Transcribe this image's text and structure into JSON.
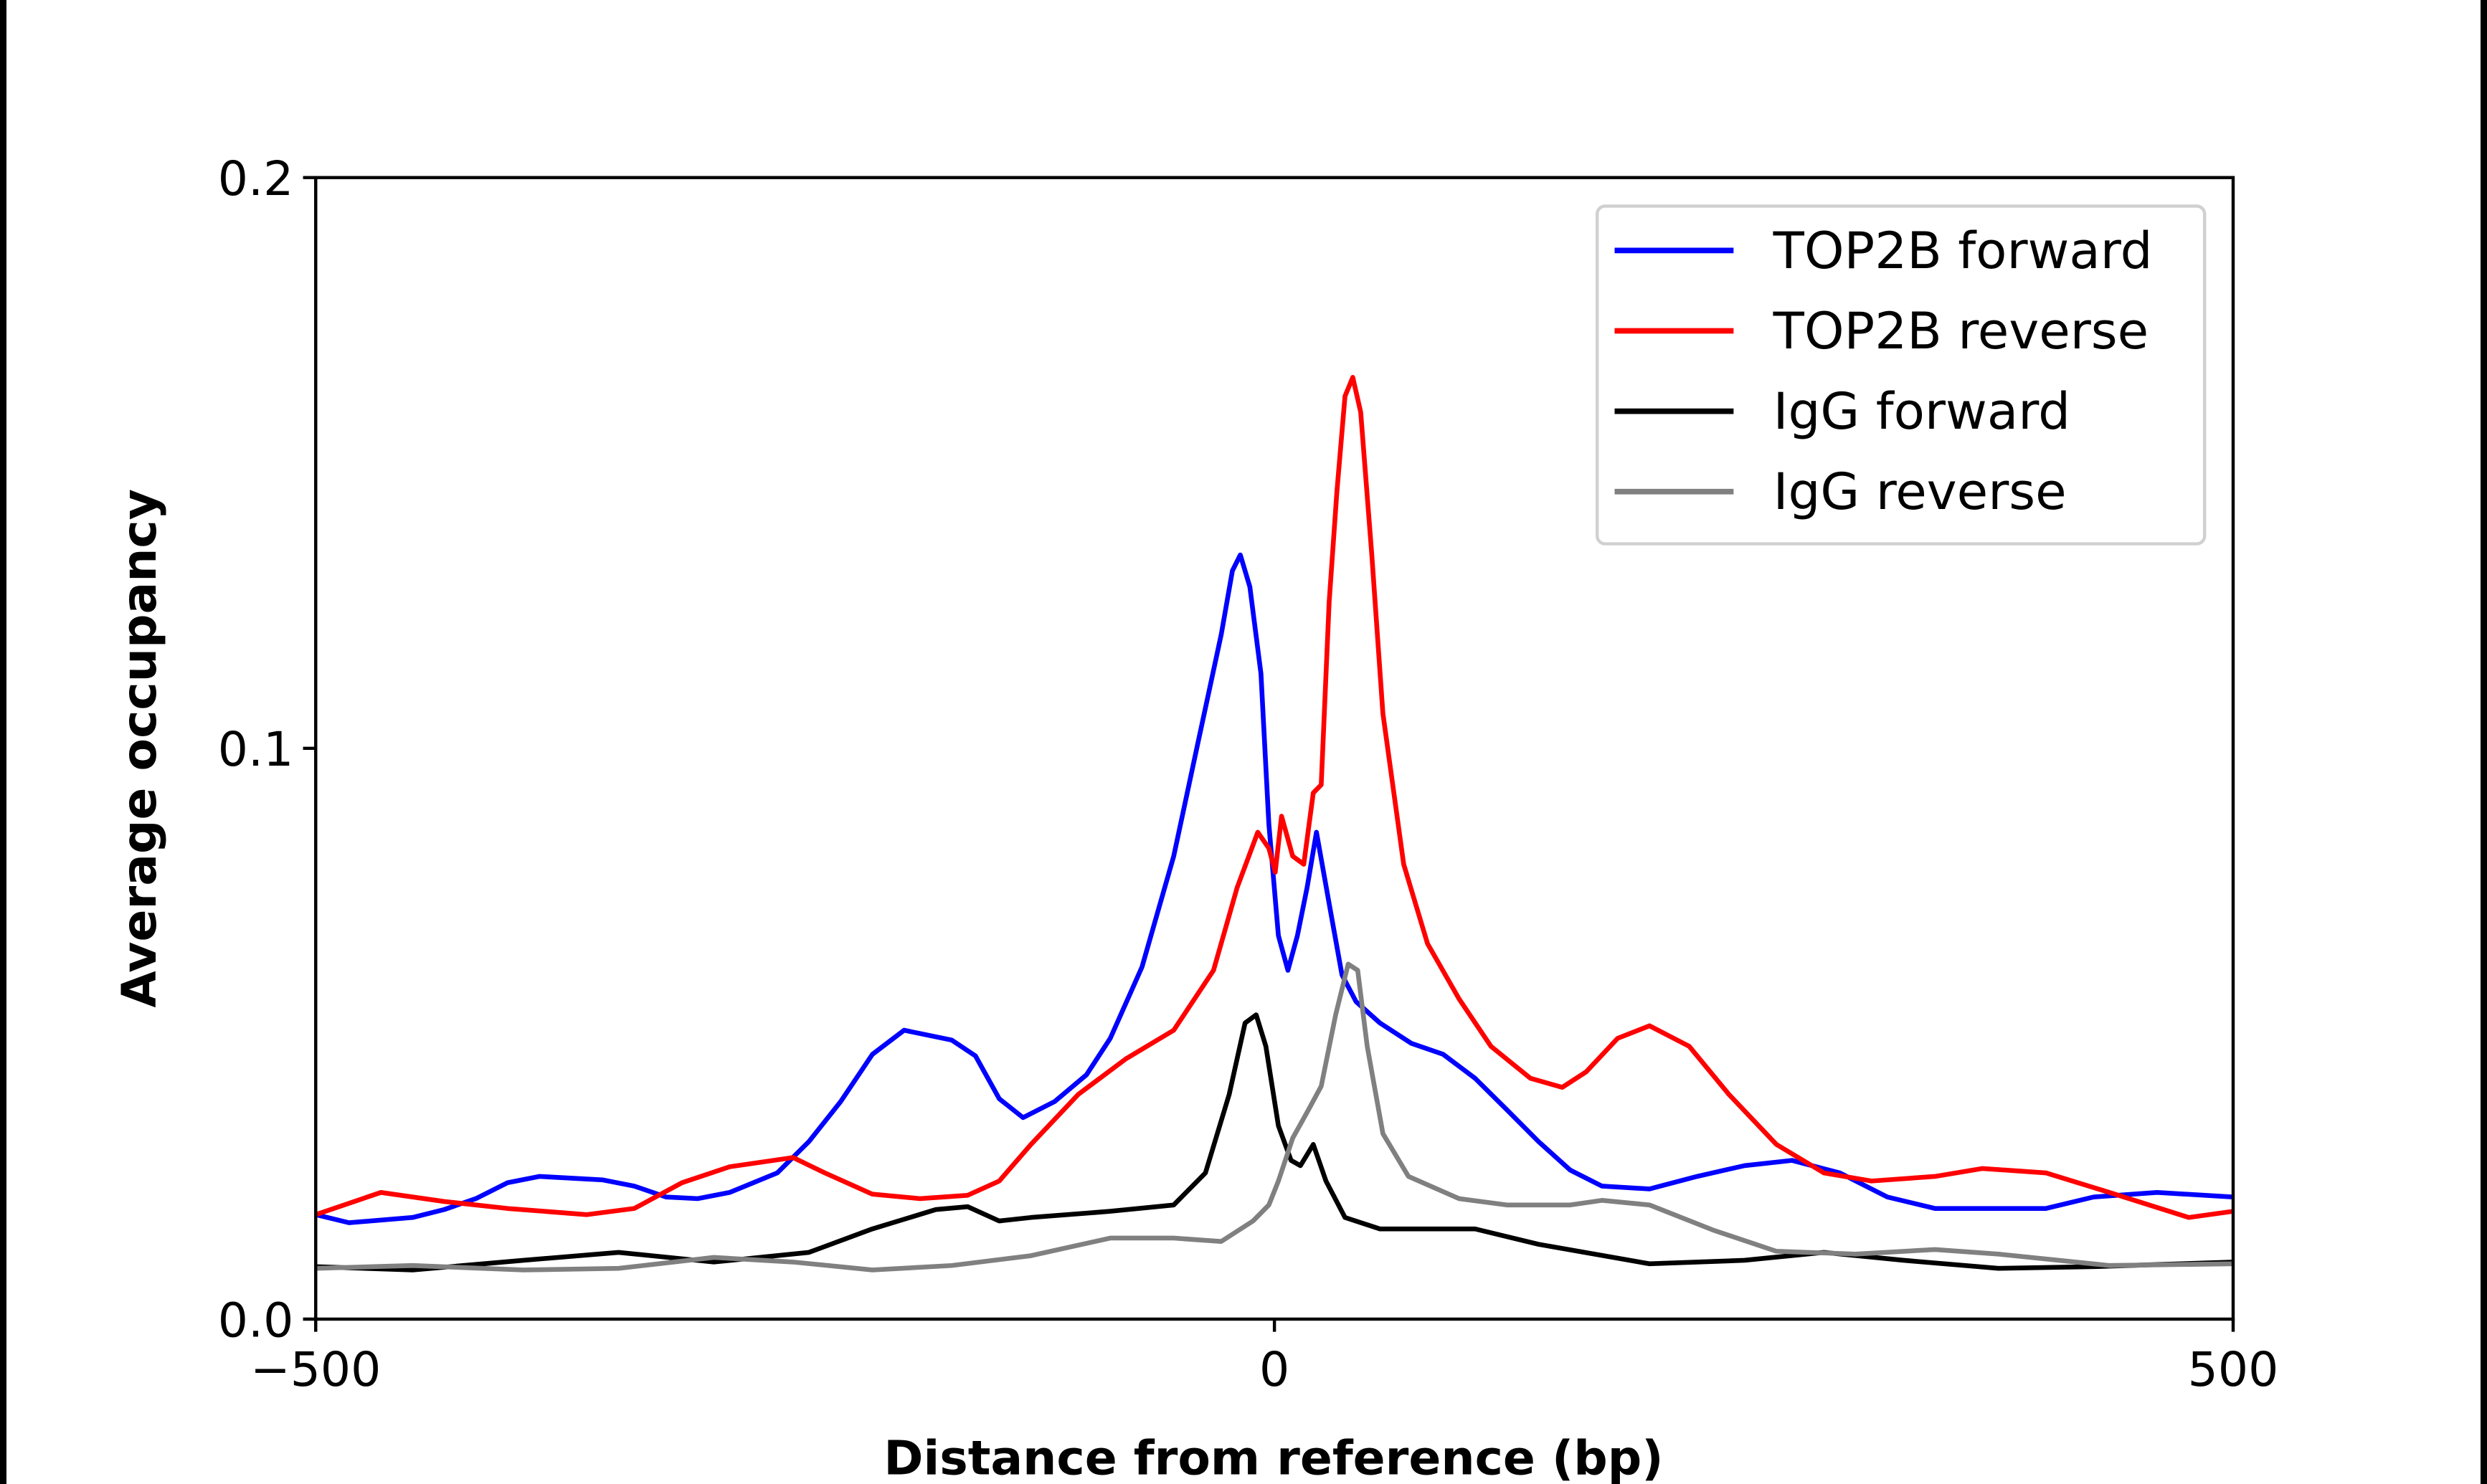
{
  "chart_data": {
    "type": "line",
    "title": "",
    "xlabel": "Distance from reference (bp)",
    "ylabel": "Average occupancy",
    "xlim": [
      -500,
      500
    ],
    "ylim": [
      0,
      0.2
    ],
    "xticks": [
      {
        "value": -500,
        "label": "−500"
      },
      {
        "value": 0,
        "label": "0"
      },
      {
        "value": 500,
        "label": "500"
      }
    ],
    "yticks": [
      {
        "value": 0,
        "label": "0.0"
      },
      {
        "value": 0.1,
        "label": "0.1"
      },
      {
        "value": 0.2,
        "label": "0.2"
      }
    ],
    "grid": false,
    "legend_position": "top-right",
    "series": [
      {
        "name": "TOP2B forward",
        "color": "#0000ff",
        "x": [
          -500,
          -482.6,
          -449.5,
          -433,
          -416.5,
          -400,
          -383.4,
          -350.3,
          -333.8,
          -317.2,
          -300.7,
          -284.1,
          -259.3,
          -242.8,
          -226.2,
          -209.7,
          -193.1,
          -168.3,
          -155.9,
          -143.5,
          -131.1,
          -114.6,
          -98,
          -85.6,
          -69.1,
          -52.5,
          -40.1,
          -27.7,
          -21.9,
          -17.8,
          -12.8,
          -7,
          -2.9,
          2.1,
          7,
          12,
          17,
          21.9,
          28.5,
          35.2,
          42.6,
          55,
          71.5,
          88,
          104.6,
          121.2,
          137.7,
          154.3,
          170.8,
          195.6,
          220.4,
          245.2,
          270,
          294.9,
          319.7,
          344.5,
          377.6,
          402.4,
          427.2,
          460.3,
          500
        ],
        "y": [
          0.0183,
          0.0169,
          0.0178,
          0.0192,
          0.0211,
          0.0239,
          0.025,
          0.0244,
          0.0233,
          0.0214,
          0.0211,
          0.0222,
          0.0256,
          0.0311,
          0.0381,
          0.0464,
          0.0506,
          0.0489,
          0.0461,
          0.0386,
          0.0353,
          0.0381,
          0.0428,
          0.0492,
          0.0617,
          0.0811,
          0.1006,
          0.12,
          0.1311,
          0.1339,
          0.1283,
          0.1131,
          0.0867,
          0.0672,
          0.0611,
          0.0672,
          0.0756,
          0.0853,
          0.0728,
          0.0603,
          0.0556,
          0.0519,
          0.0483,
          0.0464,
          0.0422,
          0.0367,
          0.0311,
          0.0261,
          0.0233,
          0.0228,
          0.025,
          0.0269,
          0.0278,
          0.0256,
          0.0214,
          0.0194,
          0.0194,
          0.0194,
          0.0214,
          0.0222,
          0.0214
        ]
      },
      {
        "name": "TOP2B reverse",
        "color": "#ff0000",
        "x": [
          -500,
          -466,
          -433,
          -400,
          -358.6,
          -333.8,
          -309,
          -284.1,
          -251,
          -234.4,
          -209.7,
          -184.9,
          -160,
          -143.5,
          -127,
          -102.2,
          -77.4,
          -52.5,
          -31.8,
          -19.4,
          -8.7,
          -2.9,
          0.4,
          3.7,
          9.5,
          15.3,
          20.3,
          24.4,
          28.5,
          32.6,
          36.8,
          40.9,
          45,
          50.8,
          56.6,
          67.4,
          79.8,
          96.3,
          112.9,
          133.5,
          150.1,
          162.5,
          179,
          195.6,
          216.3,
          237,
          261.8,
          286.6,
          311.4,
          344.5,
          369.3,
          402.4,
          435.5,
          476.8,
          500
        ],
        "y": [
          0.0183,
          0.0222,
          0.0206,
          0.0194,
          0.0183,
          0.0194,
          0.0239,
          0.0267,
          0.0283,
          0.0256,
          0.0219,
          0.0211,
          0.0217,
          0.0242,
          0.0306,
          0.0394,
          0.0456,
          0.0506,
          0.0611,
          0.0756,
          0.0853,
          0.0825,
          0.0783,
          0.0881,
          0.0811,
          0.0797,
          0.0922,
          0.0936,
          0.1256,
          0.145,
          0.1617,
          0.165,
          0.1589,
          0.1339,
          0.1061,
          0.0797,
          0.0658,
          0.0561,
          0.0478,
          0.0422,
          0.0406,
          0.0433,
          0.0492,
          0.0514,
          0.0478,
          0.0394,
          0.0306,
          0.0256,
          0.0242,
          0.025,
          0.0264,
          0.0256,
          0.0222,
          0.0178,
          0.0189
        ]
      },
      {
        "name": "IgG forward",
        "color": "#000000",
        "x": [
          -500,
          -449.5,
          -391.6,
          -342,
          -292.4,
          -242.8,
          -209.7,
          -176.6,
          -160,
          -143.5,
          -127,
          -85.6,
          -52.5,
          -36,
          -23.6,
          -15.3,
          -9.5,
          -4.5,
          2.1,
          8.7,
          13.6,
          20.3,
          26.9,
          36.8,
          55,
          104.6,
          137.7,
          195.6,
          245.2,
          286.6,
          328,
          377.6,
          427.2,
          500
        ],
        "y": [
          0.0092,
          0.0086,
          0.0103,
          0.0117,
          0.01,
          0.0117,
          0.0158,
          0.0192,
          0.0197,
          0.0172,
          0.0178,
          0.0189,
          0.02,
          0.0256,
          0.0394,
          0.0519,
          0.0533,
          0.0478,
          0.0339,
          0.0278,
          0.0269,
          0.0306,
          0.0242,
          0.0178,
          0.0158,
          0.0158,
          0.0131,
          0.0097,
          0.0103,
          0.0117,
          0.0103,
          0.0089,
          0.0092,
          0.01
        ]
      },
      {
        "name": "IgG reverse",
        "color": "#808080",
        "x": [
          -500,
          -449.5,
          -391.6,
          -342,
          -292.4,
          -251,
          -209.7,
          -168.3,
          -127,
          -85.6,
          -52.5,
          -27.7,
          -11.2,
          -2.9,
          2.1,
          9.5,
          17.8,
          24.4,
          31.9,
          38.5,
          43.4,
          48.4,
          56.6,
          69.9,
          96.3,
          121.2,
          154.3,
          170.8,
          195.6,
          228.7,
          261.8,
          303.1,
          344.5,
          377.6,
          435.5,
          500
        ],
        "y": [
          0.0089,
          0.0094,
          0.0086,
          0.0089,
          0.0108,
          0.01,
          0.0086,
          0.0094,
          0.0111,
          0.0142,
          0.0142,
          0.0136,
          0.0172,
          0.02,
          0.0242,
          0.0317,
          0.0367,
          0.0408,
          0.0533,
          0.0622,
          0.0611,
          0.0478,
          0.0325,
          0.025,
          0.0211,
          0.02,
          0.02,
          0.0208,
          0.02,
          0.0156,
          0.0119,
          0.0114,
          0.0122,
          0.0114,
          0.0094,
          0.0097
        ]
      }
    ]
  }
}
